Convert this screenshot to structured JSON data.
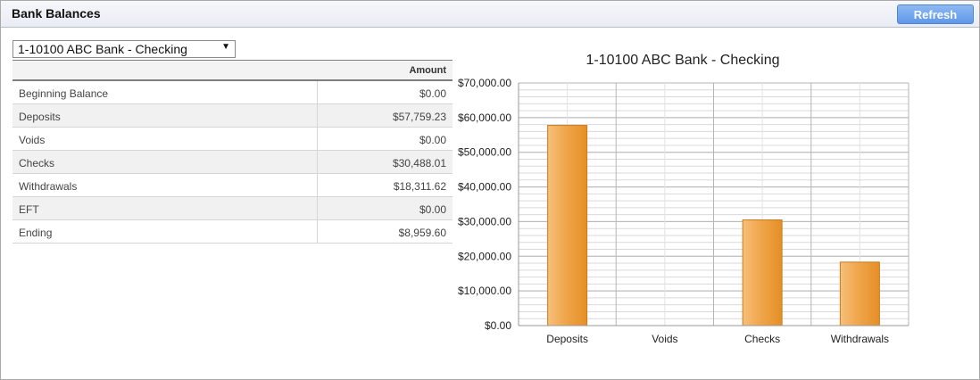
{
  "header": {
    "title": "Bank Balances",
    "refresh_label": "Refresh"
  },
  "account_select": {
    "value": "1-10100 ABC Bank - Checking"
  },
  "table": {
    "amount_header": "Amount",
    "rows": [
      {
        "label": "Beginning Balance",
        "amount": "$0.00"
      },
      {
        "label": "Deposits",
        "amount": "$57,759.23"
      },
      {
        "label": "Voids",
        "amount": "$0.00"
      },
      {
        "label": "Checks",
        "amount": "$30,488.01"
      },
      {
        "label": "Withdrawals",
        "amount": "$18,311.62"
      },
      {
        "label": "EFT",
        "amount": "$0.00"
      },
      {
        "label": "Ending",
        "amount": "$8,959.60"
      }
    ]
  },
  "chart_data": {
    "type": "bar",
    "title": "1-10100 ABC Bank - Checking",
    "categories": [
      "Deposits",
      "Voids",
      "Checks",
      "Withdrawals"
    ],
    "values": [
      57759.23,
      0,
      30488.01,
      18311.62
    ],
    "ylim": [
      0,
      70000
    ],
    "y_ticks": [
      "$0.00",
      "$10,000.00",
      "$20,000.00",
      "$30,000.00",
      "$40,000.00",
      "$50,000.00",
      "$60,000.00",
      "$70,000.00"
    ],
    "grid": true,
    "bar_color": "#f0a040",
    "bar_border": "#c77b1e"
  }
}
